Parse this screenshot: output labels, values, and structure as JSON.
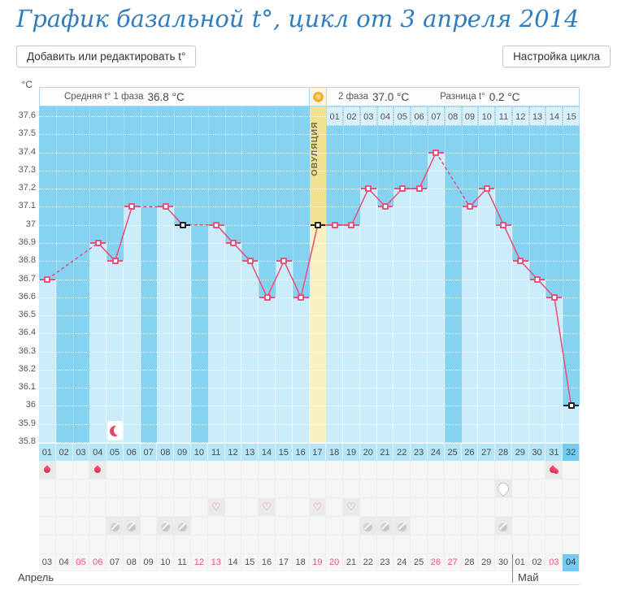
{
  "page": {
    "title": "График базальной t°, цикл от 3 апреля 2014"
  },
  "toolbar": {
    "add_edit_button": "Добавить или редактировать t°",
    "cycle_settings_button": "Настройка цикла"
  },
  "chart_data": {
    "type": "line",
    "unit_label": "°C",
    "ylim": [
      35.8,
      37.6
    ],
    "y_tick_step": 0.1,
    "header": {
      "phase1_label": "Средняя t° 1 фаза",
      "phase1_value": "36.8 °C",
      "phase2_label": "2 фаза",
      "phase2_value": "37.0 °C",
      "diff_label": "Разница t°",
      "diff_value": "0.2 °C"
    },
    "ovulation": {
      "label": "ОВУЛЯЦИЯ",
      "day": 17
    },
    "days": [
      "01",
      "02",
      "03",
      "04",
      "05",
      "06",
      "07",
      "08",
      "09",
      "10",
      "11",
      "12",
      "13",
      "14",
      "15",
      "16",
      "17",
      "18",
      "19",
      "20",
      "21",
      "22",
      "23",
      "24",
      "25",
      "26",
      "27",
      "28",
      "29",
      "30",
      "31",
      "32"
    ],
    "temps": [
      36.7,
      null,
      null,
      36.9,
      36.8,
      37.1,
      null,
      37.1,
      37.0,
      null,
      37.0,
      36.9,
      36.8,
      36.6,
      36.8,
      36.6,
      37.0,
      37.0,
      37.0,
      37.2,
      37.1,
      37.2,
      37.2,
      37.4,
      null,
      37.1,
      37.2,
      37.0,
      36.8,
      36.7,
      36.6,
      36.0
    ],
    "special_marker_days": [
      9,
      17,
      32
    ],
    "phase2_day_labels": [
      "01",
      "02",
      "03",
      "04",
      "05",
      "06",
      "07",
      "08",
      "09",
      "10",
      "11",
      "12",
      "13",
      "14",
      "15"
    ],
    "current_day": 32,
    "moon_marker": {
      "day": 5,
      "phase": "crescent"
    },
    "legend_position": "top",
    "grid": "on"
  },
  "annotations": {
    "rows": [
      {
        "name": "menstruation",
        "icon": "drop",
        "days": [
          1,
          4
        ],
        "double_days": [
          31
        ]
      },
      {
        "name": "discharge",
        "icon": "bubble",
        "days": [
          28
        ],
        "double_days": []
      },
      {
        "name": "intimacy",
        "icon": "heart",
        "days": [
          11,
          14,
          17,
          19
        ],
        "double_days": []
      },
      {
        "name": "pills",
        "icon": "pill",
        "days": [
          5,
          6,
          8,
          9,
          20,
          21,
          22,
          28
        ],
        "double_days": []
      },
      {
        "name": "extra",
        "icon": null,
        "days": [],
        "double_days": []
      }
    ],
    "heart_glyph": "♡"
  },
  "calendar": {
    "month1_label": "Апрель",
    "month2_label": "Май",
    "dates": [
      "03",
      "04",
      "05",
      "06",
      "07",
      "08",
      "09",
      "10",
      "11",
      "12",
      "13",
      "14",
      "15",
      "16",
      "17",
      "18",
      "19",
      "20",
      "21",
      "22",
      "23",
      "24",
      "25",
      "26",
      "27",
      "28",
      "29",
      "30",
      "01",
      "02",
      "03",
      "04"
    ],
    "weekend_indices": [
      2,
      3,
      9,
      10,
      16,
      17,
      23,
      24,
      30
    ],
    "today_index": 31,
    "month_divider_after_index": 27
  },
  "colors": {
    "title": "#2f7dbd",
    "chart_bg": "#86d3f1",
    "bar": "#cbedfb",
    "ovulation_bg": "#f0e292",
    "ovulation_bar": "#f9f2c0",
    "line": "#e8537e",
    "marker_special": "#222222",
    "current_day_bg": "#74cbf1",
    "weekend_date": "#ef5878",
    "sun_icon": "#f0a11a",
    "moon_icon": "#e8426e"
  }
}
